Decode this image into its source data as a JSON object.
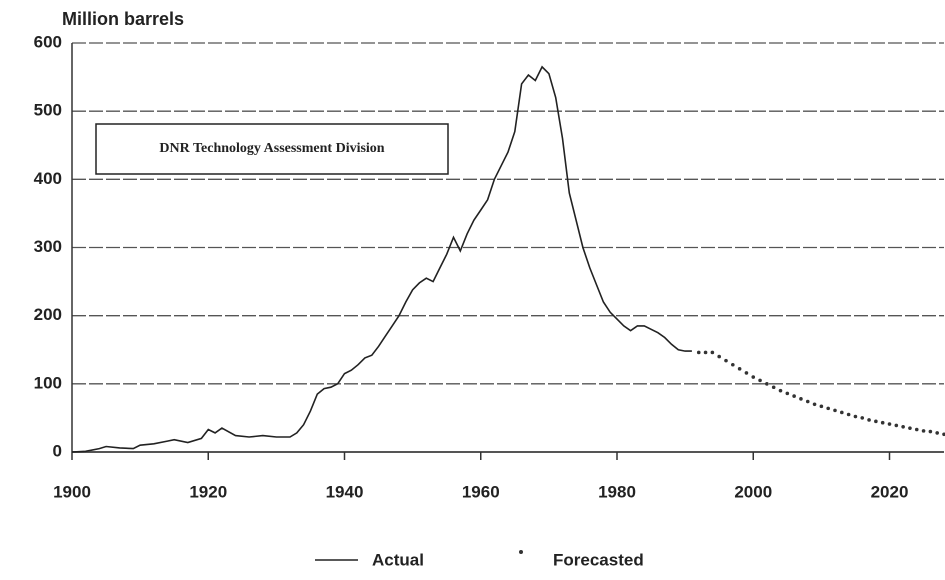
{
  "chart_data": {
    "type": "line",
    "y_label": "Million barrels",
    "annotation": "DNR Technology Assessment Division",
    "xlim": [
      1900,
      2028
    ],
    "xticks": [
      1900,
      1920,
      1940,
      1960,
      1980,
      2000,
      2020
    ],
    "ylim": [
      0,
      600
    ],
    "yticks": [
      0,
      100,
      200,
      300,
      400,
      500,
      600
    ],
    "grid": true,
    "legend": "bottom",
    "series": [
      {
        "name": "Actual",
        "color": "#222222",
        "style": "solid",
        "x": [
          1900,
          1902,
          1904,
          1905,
          1907,
          1909,
          1910,
          1912,
          1914,
          1915,
          1917,
          1919,
          1920,
          1921,
          1922,
          1924,
          1926,
          1928,
          1930,
          1932,
          1933,
          1934,
          1935,
          1936,
          1937,
          1938,
          1939,
          1940,
          1941,
          1942,
          1943,
          1944,
          1945,
          1946,
          1947,
          1948,
          1949,
          1950,
          1951,
          1952,
          1953,
          1954,
          1955,
          1956,
          1957,
          1958,
          1959,
          1960,
          1961,
          1962,
          1963,
          1964,
          1965,
          1966,
          1967,
          1968,
          1969,
          1970,
          1971,
          1972,
          1973,
          1974,
          1975,
          1976,
          1977,
          1978,
          1979,
          1980,
          1981,
          1982,
          1983,
          1984,
          1985,
          1986,
          1987,
          1988,
          1989,
          1990,
          1991
        ],
        "values": [
          0,
          1,
          5,
          8,
          6,
          5,
          10,
          12,
          16,
          18,
          14,
          20,
          33,
          28,
          35,
          24,
          22,
          24,
          22,
          22,
          28,
          40,
          60,
          85,
          93,
          95,
          100,
          115,
          120,
          128,
          138,
          142,
          155,
          170,
          185,
          200,
          220,
          238,
          248,
          255,
          250,
          270,
          290,
          315,
          295,
          320,
          340,
          355,
          370,
          400,
          420,
          440,
          470,
          540,
          553,
          545,
          565,
          555,
          520,
          460,
          380,
          340,
          300,
          270,
          245,
          220,
          205,
          195,
          185,
          178,
          185,
          185,
          180,
          175,
          168,
          158,
          150,
          148,
          148
        ]
      },
      {
        "name": "Forecasted",
        "color": "#333333",
        "style": "dotted",
        "x": [
          1992,
          1993,
          1994,
          1995,
          1996,
          1997,
          1998,
          1999,
          2000,
          2001,
          2002,
          2003,
          2004,
          2005,
          2006,
          2007,
          2008,
          2009,
          2010,
          2011,
          2012,
          2013,
          2014,
          2015,
          2016,
          2017,
          2018,
          2019,
          2020,
          2021,
          2022,
          2023,
          2024,
          2025,
          2026,
          2027,
          2028
        ],
        "values": [
          146,
          146,
          146,
          140,
          134,
          128,
          122,
          116,
          110,
          105,
          100,
          95,
          90,
          86,
          82,
          78,
          74,
          70,
          67,
          64,
          61,
          58,
          55,
          52,
          50,
          47,
          45,
          43,
          41,
          39,
          37,
          35,
          33,
          31,
          30,
          28,
          26
        ]
      }
    ]
  }
}
